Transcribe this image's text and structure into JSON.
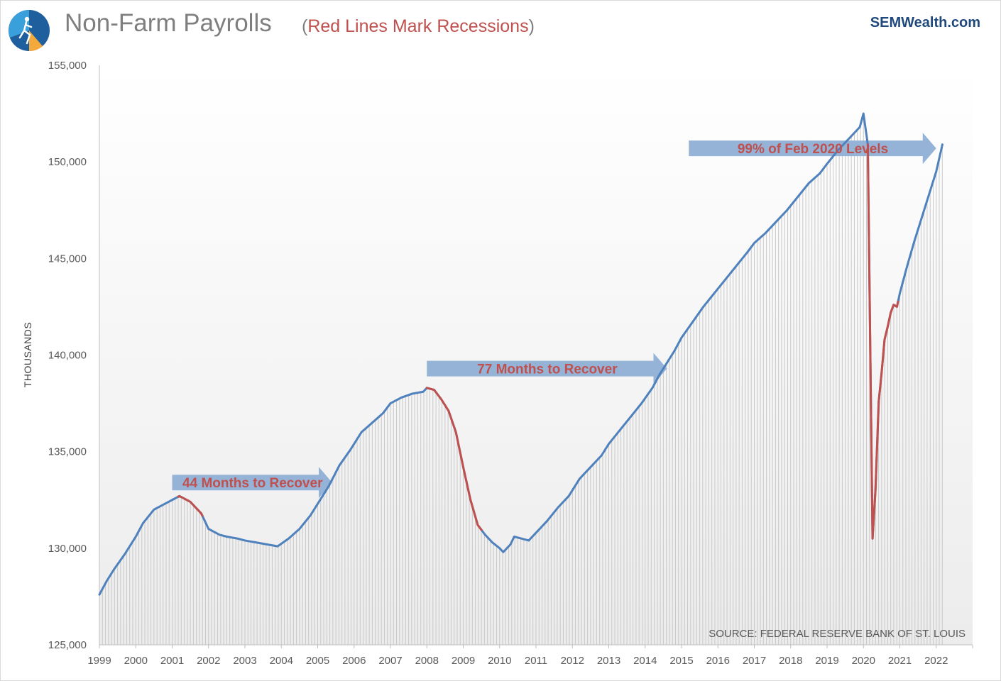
{
  "header": {
    "title": "Non-Farm Payrolls",
    "subtitle_open": "(",
    "subtitle_text": "Red Lines Mark Recessions",
    "subtitle_close": ")",
    "brand": "SEMWealth.com"
  },
  "colors": {
    "line": "#4f81bd",
    "recession": "#c0504d",
    "arrow": "#95b3d7",
    "bars": "#c8c8c8",
    "annotation_text": "#c0504d"
  },
  "chart_data": {
    "type": "line",
    "title": "Non-Farm Payrolls",
    "subtitle": "(Red Lines Mark Recessions)",
    "ylabel": "THOUSANDS",
    "xlabel": "",
    "ylim": [
      125000,
      155000
    ],
    "xlim": [
      1999.0,
      2023.0
    ],
    "yticks": [
      125000,
      130000,
      135000,
      140000,
      145000,
      150000,
      155000
    ],
    "ytick_labels": [
      "125,000",
      "130,000",
      "135,000",
      "140,000",
      "145,000",
      "150,000",
      "155,000"
    ],
    "xtick_labels": [
      "1999",
      "2000",
      "2001",
      "2002",
      "2003",
      "2004",
      "2005",
      "2006",
      "2007",
      "2008",
      "2009",
      "2010",
      "2011",
      "2012",
      "2013",
      "2014",
      "2015",
      "2016",
      "2017",
      "2018",
      "2019",
      "2020",
      "2021",
      "2022"
    ],
    "frequency": "monthly",
    "series": [
      {
        "name": "",
        "x": [
          1999.0,
          1999.2,
          1999.4,
          1999.7,
          2000.0,
          2000.2,
          2000.5,
          2000.7,
          2001.0,
          2001.2,
          2001.5,
          2001.8,
          2002.0,
          2002.3,
          2002.5,
          2002.8,
          2003.0,
          2003.3,
          2003.6,
          2003.9,
          2004.2,
          2004.5,
          2004.8,
          2005.0,
          2005.3,
          2005.6,
          2005.9,
          2006.2,
          2006.5,
          2006.8,
          2007.0,
          2007.3,
          2007.6,
          2007.9,
          2008.0,
          2008.2,
          2008.4,
          2008.6,
          2008.8,
          2009.0,
          2009.2,
          2009.4,
          2009.6,
          2009.8,
          2010.0,
          2010.1,
          2010.3,
          2010.4,
          2010.6,
          2010.8,
          2011.0,
          2011.3,
          2011.6,
          2011.9,
          2012.2,
          2012.5,
          2012.8,
          2013.0,
          2013.3,
          2013.6,
          2013.9,
          2014.2,
          2014.4,
          2014.6,
          2014.8,
          2015.0,
          2015.3,
          2015.6,
          2015.9,
          2016.2,
          2016.5,
          2016.8,
          2017.0,
          2017.3,
          2017.6,
          2017.9,
          2018.2,
          2018.5,
          2018.8,
          2019.0,
          2019.3,
          2019.6,
          2019.9,
          2020.0,
          2020.12,
          2020.25,
          2020.33,
          2020.42,
          2020.5,
          2020.58,
          2020.67,
          2020.75,
          2020.83,
          2020.92,
          2021.0,
          2021.2,
          2021.4,
          2021.6,
          2021.8,
          2022.0,
          2022.17
        ],
        "y": [
          127600,
          128300,
          128900,
          129700,
          130600,
          131300,
          132000,
          132200,
          132500,
          132700,
          132400,
          131800,
          131000,
          130700,
          130600,
          130500,
          130400,
          130300,
          130200,
          130100,
          130500,
          131000,
          131700,
          132300,
          133200,
          134300,
          135100,
          136000,
          136500,
          137000,
          137500,
          137800,
          138000,
          138100,
          138300,
          138200,
          137700,
          137100,
          136000,
          134200,
          132500,
          131200,
          130700,
          130300,
          130000,
          129800,
          130200,
          130600,
          130500,
          130400,
          130800,
          131400,
          132100,
          132700,
          133600,
          134200,
          134800,
          135400,
          136100,
          136800,
          137500,
          138300,
          139000,
          139600,
          140200,
          140900,
          141700,
          142500,
          143200,
          143900,
          144600,
          145300,
          145800,
          146300,
          146900,
          147500,
          148200,
          148900,
          149400,
          149900,
          150600,
          151200,
          151800,
          152500,
          150900,
          130500,
          133000,
          137600,
          139100,
          140800,
          141500,
          142200,
          142600,
          142500,
          143200,
          144600,
          145900,
          147100,
          148300,
          149500,
          150900
        ]
      }
    ],
    "recessions": [
      [
        2001.17,
        2001.83
      ],
      [
        2008.0,
        2009.5
      ],
      [
        2020.12,
        2020.95
      ]
    ],
    "annotations": [
      {
        "text": "44 Months to Recover",
        "arrow_from": 2001.0,
        "arrow_to": 2005.4,
        "y": 133400
      },
      {
        "text": "77 Months to Recover",
        "arrow_from": 2008.0,
        "arrow_to": 2014.6,
        "y": 139300
      },
      {
        "text": "99% of Feb 2020 Levels",
        "arrow_from": 2015.2,
        "arrow_to": 2022.0,
        "y": 150700
      }
    ],
    "source": "SOURCE: FEDERAL RESERVE BANK OF ST. LOUIS",
    "grid": false,
    "legend": "none"
  }
}
